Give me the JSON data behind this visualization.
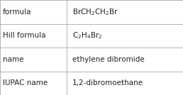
{
  "rows": [
    {
      "label": "formula",
      "value_parts": [
        {
          "text": "BrCH",
          "sub": false
        },
        {
          "text": "2",
          "sub": true
        },
        {
          "text": "CH",
          "sub": false
        },
        {
          "text": "2",
          "sub": true
        },
        {
          "text": "Br",
          "sub": false
        }
      ]
    },
    {
      "label": "Hill formula",
      "value_parts": [
        {
          "text": "C",
          "sub": false
        },
        {
          "text": "2",
          "sub": true
        },
        {
          "text": "H",
          "sub": false
        },
        {
          "text": "4",
          "sub": true
        },
        {
          "text": "Br",
          "sub": false
        },
        {
          "text": "2",
          "sub": true
        }
      ]
    },
    {
      "label": "name",
      "value_plain": "ethylene dibromide"
    },
    {
      "label": "IUPAC name",
      "value_plain": "1,2-dibromoethane"
    }
  ],
  "col_split": 0.365,
  "background": "#ffffff",
  "border_color": "#aaaaaa",
  "text_color": "#222222",
  "font_size": 7.5,
  "fig_width": 2.58,
  "fig_height": 1.34,
  "dpi": 100
}
